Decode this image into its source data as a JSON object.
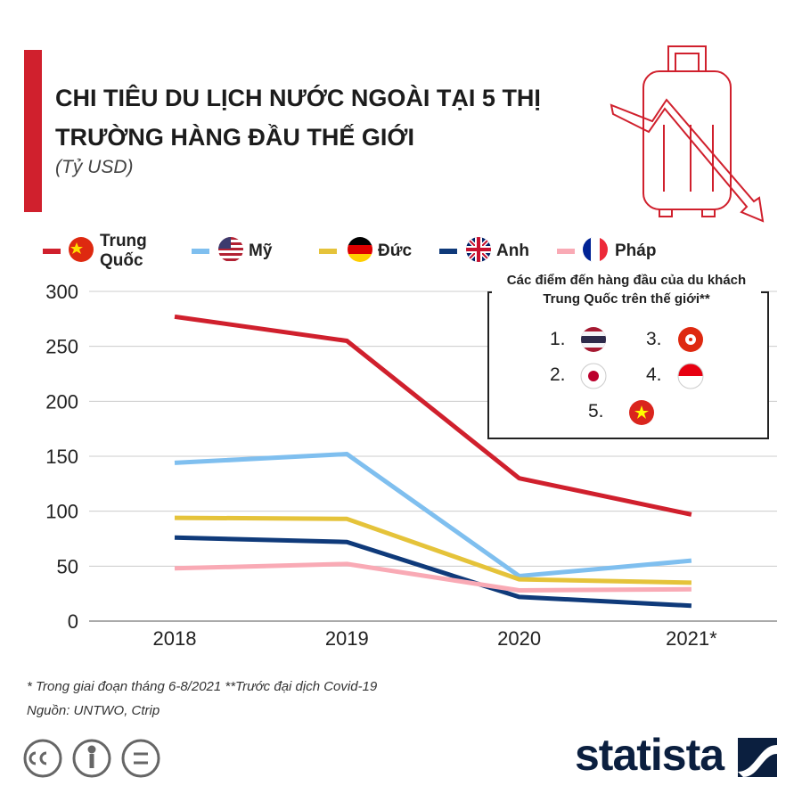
{
  "chart_data": {
    "type": "line",
    "title": "CHI TIÊU DU LỊCH NƯỚC NGOÀI TẠI 5 THỊ TRƯỜNG HÀNG ĐẦU THẾ GIỚI",
    "subtitle": "(Tỷ USD)",
    "categories": [
      "2018",
      "2019",
      "2020",
      "2021*"
    ],
    "series": [
      {
        "name": "Trung Quốc",
        "color": "#d0202d",
        "values": [
          277,
          255,
          130,
          97
        ]
      },
      {
        "name": "Mỹ",
        "color": "#7fbfef",
        "values": [
          144,
          152,
          41,
          55
        ]
      },
      {
        "name": "Đức",
        "color": "#e5c33a",
        "values": [
          94,
          93,
          38,
          35
        ]
      },
      {
        "name": "Anh",
        "color": "#0f3a7a",
        "values": [
          76,
          72,
          22,
          14
        ]
      },
      {
        "name": "Pháp",
        "color": "#f9aab5",
        "values": [
          48,
          52,
          28,
          29
        ]
      }
    ],
    "ylim": [
      0,
      300
    ],
    "yticks": [
      0,
      50,
      100,
      150,
      200,
      250,
      300
    ],
    "grid": true,
    "inset": {
      "title": "Các điểm đến hàng đầu của du khách Trung Quốc trên thế giới**",
      "items": [
        "1.",
        "2.",
        "3.",
        "4.",
        "5."
      ]
    },
    "footnote": "* Trong giai đoạn tháng 6-8/2021  **Trước đại dịch Covid-19",
    "source": "Nguồn: UNTWO, Ctrip",
    "logo": "statista"
  }
}
